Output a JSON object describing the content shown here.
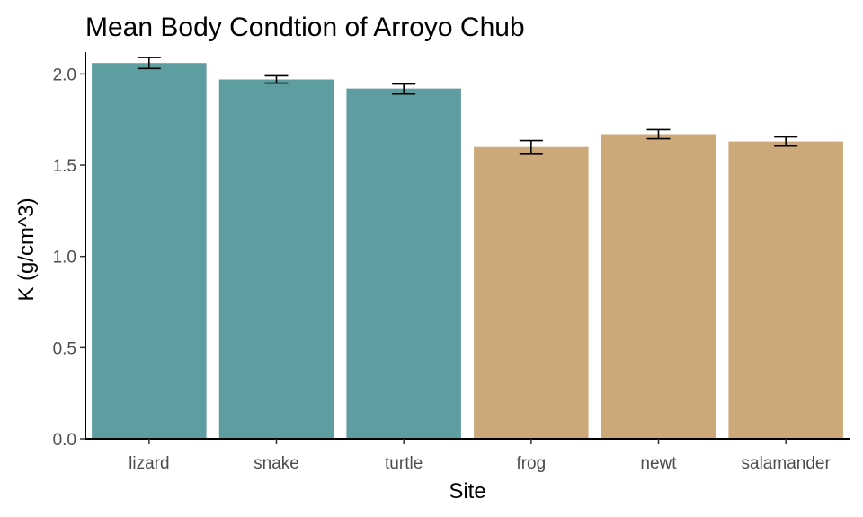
{
  "chart_data": {
    "type": "bar",
    "title": "Mean Body Condtion of Arroyo Chub",
    "xlabel": "Site",
    "ylabel": "K (g/cm^3)",
    "ylim": [
      0,
      2.12
    ],
    "yticks": [
      "0.0",
      "0.5",
      "1.0",
      "1.5",
      "2.0"
    ],
    "categories": [
      "lizard",
      "snake",
      "turtle",
      "frog",
      "newt",
      "salamander"
    ],
    "values": [
      2.06,
      1.97,
      1.92,
      1.6,
      1.67,
      1.63
    ],
    "error_low": [
      2.03,
      1.95,
      1.89,
      1.56,
      1.645,
      1.605
    ],
    "error_high": [
      2.09,
      1.99,
      1.945,
      1.635,
      1.695,
      1.655
    ],
    "bar_colors": [
      "#5f9ea0",
      "#5f9ea0",
      "#5f9ea0",
      "#cda97a",
      "#cda97a",
      "#cda97a"
    ],
    "grid": false,
    "legend": "none"
  }
}
